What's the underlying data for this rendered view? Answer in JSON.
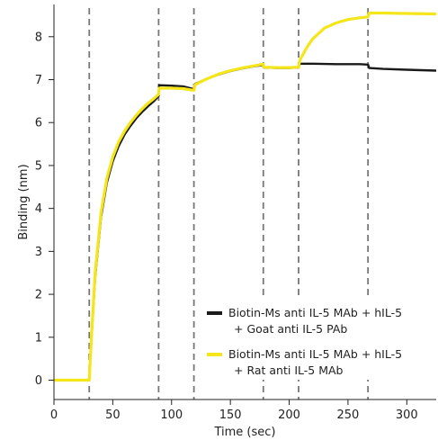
{
  "chart_data": {
    "type": "line",
    "title": "",
    "xlabel": "Time (sec)",
    "ylabel": "Binding (nm)",
    "xlim": [
      0,
      325
    ],
    "ylim": [
      -0.45,
      8.75
    ],
    "xticks": [
      0,
      50,
      100,
      150,
      200,
      250,
      300
    ],
    "yticks": [
      0,
      1,
      2,
      3,
      4,
      5,
      6,
      7,
      8
    ],
    "grid": false,
    "legend_position": "bottom-right",
    "step_markers": [
      30,
      89,
      119,
      178,
      208,
      267
    ],
    "series": [
      {
        "name": "Biotin-Ms anti IL-5 MAb + hIL-5 + Goat anti IL-5 PAb",
        "color": "#1a1a1a",
        "points": [
          [
            0,
            0
          ],
          [
            30,
            0
          ],
          [
            32,
            1.0
          ],
          [
            35,
            2.4
          ],
          [
            40,
            3.8
          ],
          [
            45,
            4.6
          ],
          [
            50,
            5.1
          ],
          [
            55,
            5.45
          ],
          [
            60,
            5.72
          ],
          [
            65,
            5.92
          ],
          [
            70,
            6.1
          ],
          [
            75,
            6.25
          ],
          [
            80,
            6.38
          ],
          [
            85,
            6.5
          ],
          [
            89,
            6.62
          ],
          [
            89.5,
            6.87
          ],
          [
            100,
            6.86
          ],
          [
            110,
            6.84
          ],
          [
            119,
            6.78
          ],
          [
            120,
            6.9
          ],
          [
            130,
            7.02
          ],
          [
            140,
            7.12
          ],
          [
            150,
            7.2
          ],
          [
            160,
            7.26
          ],
          [
            170,
            7.31
          ],
          [
            178,
            7.34
          ],
          [
            178.5,
            7.28
          ],
          [
            190,
            7.27
          ],
          [
            200,
            7.27
          ],
          [
            208,
            7.28
          ],
          [
            209,
            7.37
          ],
          [
            220,
            7.37
          ],
          [
            240,
            7.36
          ],
          [
            260,
            7.36
          ],
          [
            267,
            7.35
          ],
          [
            268,
            7.27
          ],
          [
            280,
            7.25
          ],
          [
            300,
            7.23
          ],
          [
            325,
            7.21
          ]
        ]
      },
      {
        "name": "Biotin-Ms anti IL-5 MAb + hIL-5 + Rat anti IL-5 MAb",
        "color": "#f5e61c",
        "points": [
          [
            0,
            0
          ],
          [
            30,
            0
          ],
          [
            32,
            1.05
          ],
          [
            35,
            2.5
          ],
          [
            40,
            3.9
          ],
          [
            45,
            4.7
          ],
          [
            50,
            5.2
          ],
          [
            55,
            5.55
          ],
          [
            60,
            5.8
          ],
          [
            65,
            6.0
          ],
          [
            70,
            6.17
          ],
          [
            75,
            6.32
          ],
          [
            80,
            6.45
          ],
          [
            85,
            6.56
          ],
          [
            89,
            6.66
          ],
          [
            89.5,
            6.8
          ],
          [
            100,
            6.8
          ],
          [
            110,
            6.79
          ],
          [
            119,
            6.75
          ],
          [
            120,
            6.88
          ],
          [
            130,
            7.02
          ],
          [
            140,
            7.13
          ],
          [
            150,
            7.21
          ],
          [
            160,
            7.27
          ],
          [
            170,
            7.32
          ],
          [
            178,
            7.36
          ],
          [
            178.5,
            7.29
          ],
          [
            190,
            7.28
          ],
          [
            200,
            7.28
          ],
          [
            208,
            7.29
          ],
          [
            209,
            7.45
          ],
          [
            215,
            7.75
          ],
          [
            220,
            7.95
          ],
          [
            230,
            8.2
          ],
          [
            240,
            8.32
          ],
          [
            250,
            8.4
          ],
          [
            260,
            8.44
          ],
          [
            267,
            8.46
          ],
          [
            268,
            8.55
          ],
          [
            280,
            8.55
          ],
          [
            300,
            8.54
          ],
          [
            325,
            8.53
          ]
        ]
      }
    ]
  }
}
